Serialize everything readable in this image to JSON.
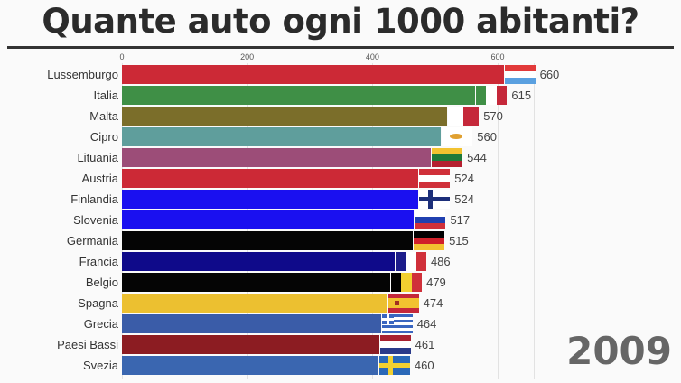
{
  "title": "Quante auto ogni 1000 abitanti?",
  "year": "2009",
  "axis": {
    "ticks": [
      "0",
      "200",
      "400",
      "600"
    ]
  },
  "chart_data": {
    "type": "bar",
    "orientation": "horizontal",
    "title": "Quante auto ogni 1000 abitanti?",
    "annotation": "2009",
    "xlabel": "",
    "ylabel": "",
    "xlim": [
      0,
      700
    ],
    "x_ticks": [
      0,
      200,
      400,
      600
    ],
    "grid": true,
    "categories": [
      "Lussemburgo",
      "Italia",
      "Malta",
      "Cipro",
      "Lituania",
      "Austria",
      "Finlandia",
      "Slovenia",
      "Germania",
      "Francia",
      "Belgio",
      "Spagna",
      "Grecia",
      "Paesi Bassi",
      "Svezia"
    ],
    "values": [
      660,
      615,
      570,
      560,
      544,
      524,
      524,
      517,
      515,
      486,
      479,
      474,
      464,
      461,
      460
    ],
    "colors": [
      "#cc2936",
      "#3f8f46",
      "#7b6e2a",
      "#5f9e9c",
      "#9c4d78",
      "#cc2936",
      "#1a10f0",
      "#1a10f0",
      "#050505",
      "#0f0a8a",
      "#050505",
      "#ecc030",
      "#3a5ca8",
      "#8c1c22",
      "#3a66b0"
    ]
  },
  "rows": [
    {
      "label": "Lussemburgo",
      "value": "660"
    },
    {
      "label": "Italia",
      "value": "615"
    },
    {
      "label": "Malta",
      "value": "570"
    },
    {
      "label": "Cipro",
      "value": "560"
    },
    {
      "label": "Lituania",
      "value": "544"
    },
    {
      "label": "Austria",
      "value": "524"
    },
    {
      "label": "Finlandia",
      "value": "524"
    },
    {
      "label": "Slovenia",
      "value": "517"
    },
    {
      "label": "Germania",
      "value": "515"
    },
    {
      "label": "Francia",
      "value": "486"
    },
    {
      "label": "Belgio",
      "value": "479"
    },
    {
      "label": "Spagna",
      "value": "474"
    },
    {
      "label": "Grecia",
      "value": "464"
    },
    {
      "label": "Paesi Bassi",
      "value": "461"
    },
    {
      "label": "Svezia",
      "value": "460"
    }
  ]
}
